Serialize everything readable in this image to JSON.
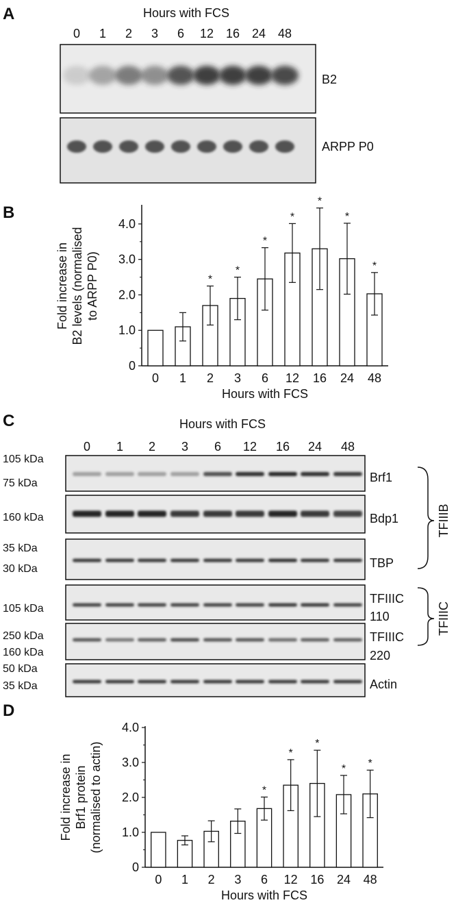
{
  "panels": {
    "a": {
      "letter": "A",
      "xlabel": "Hours with FCS",
      "lanes": [
        "0",
        "1",
        "2",
        "3",
        "6",
        "12",
        "16",
        "24",
        "48"
      ],
      "blots": [
        "B2",
        "ARPP P0"
      ]
    },
    "c": {
      "letter": "C",
      "xlabel": "Hours with FCS",
      "lanes": [
        "0",
        "1",
        "2",
        "3",
        "6",
        "12",
        "16",
        "24",
        "48"
      ],
      "rows": [
        {
          "name": "Brf1",
          "mw": [
            "105 kDa",
            "75 kDa"
          ]
        },
        {
          "name": "Bdp1",
          "mw": [
            "160 kDa"
          ]
        },
        {
          "name": "TBP",
          "mw": [
            "35 kDa",
            "30 kDa"
          ]
        },
        {
          "name": "TFIIIC\n110",
          "mw": [
            "105 kDa"
          ]
        },
        {
          "name": "TFIIIC\n220",
          "mw": [
            "250 kDa",
            "160 kDa"
          ]
        },
        {
          "name": "Actin",
          "mw": [
            "50 kDa",
            "35 kDa"
          ]
        }
      ],
      "groups": [
        "TFIIIB",
        "TFIIIC"
      ]
    }
  },
  "chart_data": [
    {
      "panel": "B",
      "type": "bar",
      "ylabel_lines": [
        "Fold increase in",
        "B2 levels (normalised",
        "to ARPP P0)"
      ],
      "xlabel": "Hours with FCS",
      "categories": [
        "0",
        "1",
        "2",
        "3",
        "6",
        "12",
        "16",
        "24",
        "48"
      ],
      "values": [
        1.0,
        1.1,
        1.7,
        1.9,
        2.45,
        3.18,
        3.3,
        3.02,
        2.03
      ],
      "errors": [
        0,
        0.4,
        0.55,
        0.6,
        0.88,
        0.83,
        1.15,
        1.0,
        0.6
      ],
      "significant": [
        false,
        false,
        true,
        true,
        true,
        true,
        true,
        true,
        true
      ],
      "ylim": [
        0,
        4.5
      ],
      "yticks": [
        "0",
        "1.0",
        "2.0",
        "3.0",
        "4.0"
      ]
    },
    {
      "panel": "D",
      "type": "bar",
      "ylabel_lines": [
        "Fold increase in",
        "Brf1 protein",
        "(normalised to actin)"
      ],
      "xlabel": "Hours with FCS",
      "categories": [
        "0",
        "1",
        "2",
        "3",
        "6",
        "12",
        "16",
        "24",
        "48"
      ],
      "values": [
        1.0,
        0.77,
        1.03,
        1.32,
        1.68,
        2.35,
        2.4,
        2.08,
        2.1
      ],
      "errors": [
        0,
        0.13,
        0.3,
        0.35,
        0.33,
        0.73,
        0.95,
        0.55,
        0.68
      ],
      "significant": [
        false,
        false,
        false,
        false,
        true,
        true,
        true,
        true,
        true
      ],
      "ylim": [
        0,
        4.0
      ],
      "yticks": [
        "0",
        "1.0",
        "2.0",
        "3.0",
        "4.0"
      ]
    }
  ],
  "colors": {
    "ink": "#111111",
    "blot_bg": "#e6e6e6",
    "band": "#1a1a1a"
  }
}
